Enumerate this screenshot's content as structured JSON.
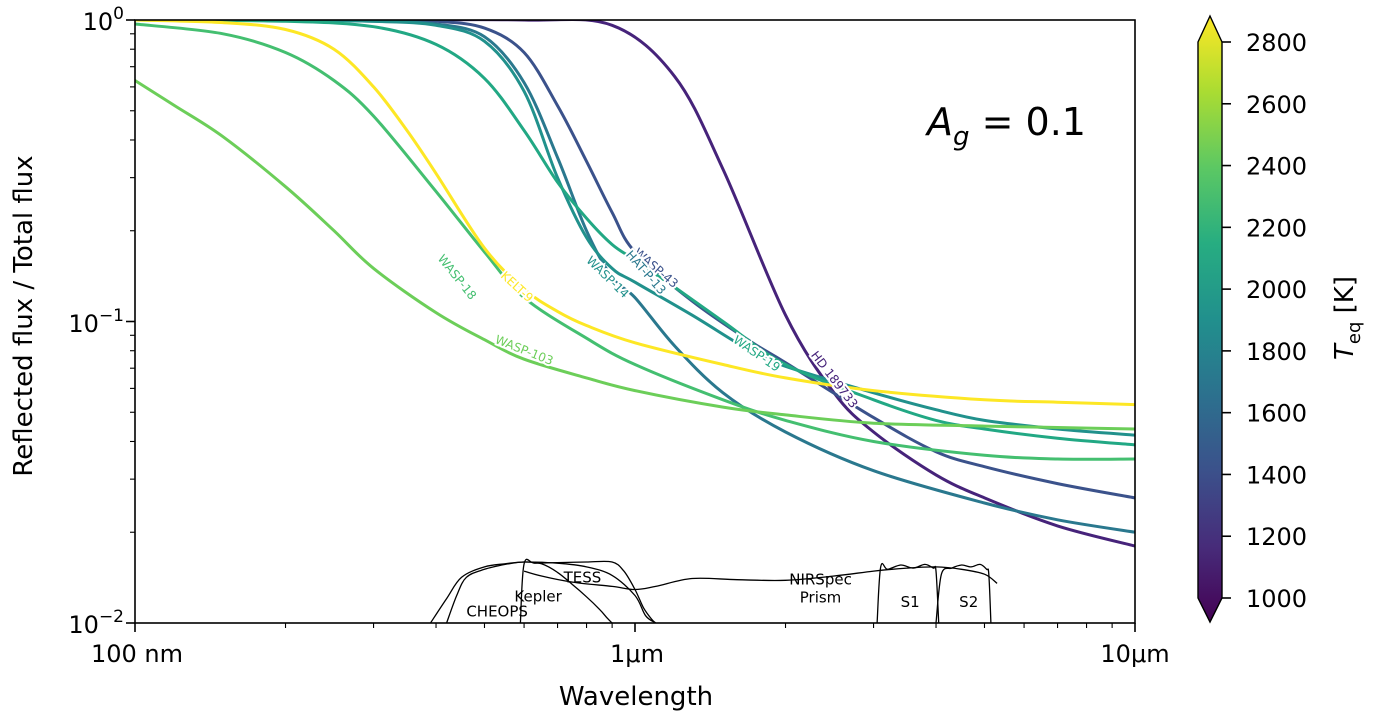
{
  "chart_data": {
    "type": "line",
    "xlabel": "Wavelength",
    "ylabel": "Reflected flux / Total flux",
    "xscale": "log",
    "yscale": "log",
    "xlim": [
      0.1,
      10
    ],
    "ylim": [
      0.01,
      1
    ],
    "x_unit": "µm",
    "x_ticks": [
      {
        "value": 0.1,
        "label": "100 nm"
      },
      {
        "value": 1,
        "label": "1μm"
      },
      {
        "value": 10,
        "label": "10μm"
      }
    ],
    "y_ticks": [
      {
        "value": 1,
        "base": "10",
        "exp": "0"
      },
      {
        "value": 0.1,
        "base": "10",
        "exp": "−1"
      },
      {
        "value": 0.01,
        "base": "10",
        "exp": "−2"
      }
    ],
    "annotation": {
      "main": "A",
      "sub": "g",
      "rest": " = 0.1"
    },
    "colorbar": {
      "label_main": "T",
      "label_sub": "eq",
      "label_rest": " [K]",
      "min": 1000,
      "max": 2800,
      "ticks": [
        1000,
        1200,
        1400,
        1600,
        1800,
        2000,
        2200,
        2400,
        2600,
        2800
      ],
      "colormap": [
        "#440154",
        "#472c7a",
        "#3b518b",
        "#2c718e",
        "#21908d",
        "#27ad81",
        "#5cc863",
        "#aadc32",
        "#fde725"
      ]
    },
    "series": [
      {
        "name": "HD 189733",
        "teq": 1200,
        "color": "#46237a",
        "x": [
          0.1,
          0.3,
          0.6,
          0.9,
          1.2,
          1.5,
          2.0,
          2.5,
          3.0,
          4.0,
          5.0,
          7.0,
          10.0
        ],
        "values": [
          1.0,
          1.0,
          1.0,
          0.96,
          0.65,
          0.32,
          0.105,
          0.058,
          0.043,
          0.031,
          0.026,
          0.021,
          0.018
        ],
        "label_x": 2.5,
        "label_y": 0.064
      },
      {
        "name": "WASP-43",
        "teq": 1400,
        "color": "#3b528b",
        "x": [
          0.1,
          0.2,
          0.3,
          0.4,
          0.5,
          0.6,
          0.7,
          0.8,
          0.9,
          1.0,
          1.3,
          1.7,
          2.0,
          3.0,
          4.0,
          5.0,
          7.0,
          10.0
        ],
        "values": [
          1.0,
          1.0,
          1.0,
          0.99,
          0.94,
          0.78,
          0.52,
          0.34,
          0.23,
          0.17,
          0.117,
          0.086,
          0.073,
          0.048,
          0.037,
          0.033,
          0.029,
          0.026
        ],
        "label_x": 1.1,
        "label_y": 0.15
      },
      {
        "name": "HAT-P-13",
        "teq": 1650,
        "color": "#2a788e",
        "x": [
          0.1,
          0.2,
          0.3,
          0.4,
          0.5,
          0.6,
          0.7,
          0.8,
          0.9,
          1.0,
          1.2,
          1.5,
          2.0,
          3.0,
          5.0,
          7.0,
          10.0
        ],
        "values": [
          1.0,
          1.0,
          0.99,
          0.97,
          0.88,
          0.62,
          0.35,
          0.2,
          0.14,
          0.12,
          0.083,
          0.058,
          0.043,
          0.032,
          0.025,
          0.022,
          0.02
        ],
        "label_x": 1.05,
        "label_y": 0.145
      },
      {
        "name": "WASP-14",
        "teq": 1900,
        "color": "#21918c",
        "x": [
          0.1,
          0.2,
          0.3,
          0.4,
          0.5,
          0.6,
          0.7,
          0.8,
          0.9,
          1.0,
          1.3,
          1.7,
          2.0,
          3.0,
          4.0,
          5.0,
          7.0,
          10.0
        ],
        "values": [
          1.0,
          1.0,
          0.99,
          0.96,
          0.85,
          0.58,
          0.3,
          0.19,
          0.15,
          0.135,
          0.105,
          0.08,
          0.071,
          0.058,
          0.051,
          0.047,
          0.044,
          0.042
        ],
        "label_x": 0.88,
        "label_y": 0.14
      },
      {
        "name": "WASP-19",
        "teq": 2100,
        "color": "#22a884",
        "x": [
          0.1,
          0.2,
          0.3,
          0.4,
          0.5,
          0.6,
          0.7,
          0.8,
          0.9,
          1.0,
          1.2,
          1.5,
          2.0,
          3.0,
          4.0,
          5.0,
          7.0,
          10.0
        ],
        "values": [
          1.0,
          0.99,
          0.95,
          0.83,
          0.64,
          0.43,
          0.29,
          0.22,
          0.18,
          0.16,
          0.13,
          0.1,
          0.072,
          0.055,
          0.047,
          0.044,
          0.041,
          0.039
        ],
        "label_x": 1.75,
        "label_y": 0.078
      },
      {
        "name": "WASP-18",
        "teq": 2400,
        "color": "#44bf70",
        "x": [
          0.1,
          0.15,
          0.2,
          0.25,
          0.3,
          0.4,
          0.5,
          0.6,
          0.8,
          1.0,
          1.5,
          2.0,
          3.0,
          5.0,
          7.0,
          10.0
        ],
        "values": [
          0.97,
          0.9,
          0.78,
          0.63,
          0.48,
          0.27,
          0.17,
          0.12,
          0.088,
          0.072,
          0.055,
          0.047,
          0.04,
          0.036,
          0.035,
          0.035
        ],
        "label_x": 0.44,
        "label_y": 0.14
      },
      {
        "name": "WASP-103",
        "teq": 2500,
        "color": "#6cce59",
        "x": [
          0.1,
          0.12,
          0.15,
          0.2,
          0.25,
          0.3,
          0.4,
          0.5,
          0.6,
          0.8,
          1.0,
          1.5,
          2.0,
          3.0,
          5.0,
          7.0,
          10.0
        ],
        "values": [
          0.63,
          0.52,
          0.41,
          0.28,
          0.2,
          0.15,
          0.107,
          0.087,
          0.075,
          0.065,
          0.059,
          0.052,
          0.049,
          0.046,
          0.045,
          0.0445,
          0.044
        ],
        "label_x": 0.6,
        "label_y": 0.08
      },
      {
        "name": "KELT-9",
        "teq": 2800,
        "color": "#fde725",
        "x": [
          0.1,
          0.15,
          0.2,
          0.25,
          0.3,
          0.35,
          0.4,
          0.5,
          0.6,
          0.7,
          0.8,
          1.0,
          1.5,
          2.0,
          3.0,
          5.0,
          7.0,
          10.0
        ],
        "values": [
          1.0,
          0.98,
          0.93,
          0.8,
          0.6,
          0.43,
          0.31,
          0.175,
          0.128,
          0.108,
          0.097,
          0.085,
          0.072,
          0.065,
          0.059,
          0.055,
          0.054,
          0.053
        ],
        "label_x": 0.58,
        "label_y": 0.13
      }
    ],
    "bandpasses": [
      {
        "name": "CHEOPS",
        "x": [
          0.39,
          0.42,
          0.45,
          0.5,
          0.55,
          0.6,
          0.7,
          0.8,
          0.9,
          1.0,
          1.05,
          1.1
        ],
        "values": [
          0.0,
          0.4,
          0.75,
          0.92,
          0.97,
          1.0,
          0.98,
          0.92,
          0.78,
          0.45,
          0.12,
          0.0
        ]
      },
      {
        "name": "Kepler",
        "x": [
          0.42,
          0.44,
          0.46,
          0.5,
          0.55,
          0.6,
          0.65,
          0.7,
          0.75,
          0.8,
          0.85,
          0.88,
          0.9
        ],
        "values": [
          0.0,
          0.45,
          0.75,
          0.88,
          0.96,
          1.0,
          0.97,
          0.83,
          0.63,
          0.43,
          0.22,
          0.08,
          0.0
        ]
      },
      {
        "name": "TESS",
        "x": [
          0.59,
          0.6,
          0.63,
          0.7,
          0.8,
          0.9,
          0.95,
          1.0,
          1.04,
          1.08,
          1.1
        ],
        "values": [
          0.0,
          0.97,
          0.98,
          0.99,
          1.0,
          1.0,
          0.85,
          0.55,
          0.25,
          0.06,
          0.0
        ]
      },
      {
        "name": "NIRSpec Prism",
        "x": [
          0.6,
          0.65,
          0.75,
          0.9,
          1.0,
          1.1,
          1.3,
          1.6,
          2.0,
          2.5,
          3.0,
          3.5,
          4.0,
          4.5,
          5.0,
          5.3
        ],
        "values": [
          0.85,
          0.77,
          0.67,
          0.6,
          0.55,
          0.6,
          0.73,
          0.71,
          0.7,
          0.77,
          0.85,
          0.9,
          0.92,
          0.88,
          0.8,
          0.65
        ]
      },
      {
        "name": "S1",
        "x": [
          3.05,
          3.1,
          3.2,
          3.4,
          3.6,
          3.8,
          3.95,
          4.0,
          4.05
        ],
        "values": [
          0.0,
          0.92,
          0.88,
          0.95,
          0.9,
          0.96,
          0.9,
          0.85,
          0.0
        ]
      },
      {
        "name": "S2",
        "x": [
          4.0,
          4.1,
          4.3,
          4.5,
          4.7,
          4.9,
          5.05,
          5.1,
          5.15
        ],
        "values": [
          0.0,
          0.8,
          0.9,
          0.95,
          0.92,
          0.96,
          0.88,
          0.8,
          0.0
        ]
      }
    ],
    "band_labels": [
      {
        "text": "CHEOPS",
        "x": 0.53,
        "y": 0.0105
      },
      {
        "text": "Kepler",
        "x": 0.64,
        "y": 0.0118
      },
      {
        "text": "TESS",
        "x": 0.785,
        "y": 0.0136
      },
      {
        "text": "NIRSpec",
        "x": 2.35,
        "y": 0.0134
      },
      {
        "text": "Prism",
        "x": 2.35,
        "y": 0.0117
      },
      {
        "text": "S1",
        "x": 3.55,
        "y": 0.0113
      },
      {
        "text": "S2",
        "x": 4.65,
        "y": 0.0113
      }
    ],
    "grid": false,
    "legend": "inline labels on curves"
  }
}
